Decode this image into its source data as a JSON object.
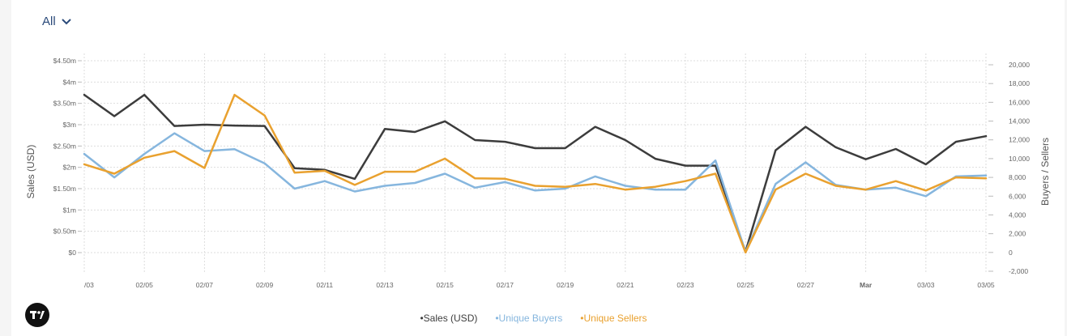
{
  "filter": {
    "label": "All"
  },
  "colors": {
    "sales": "#3c3c3c",
    "buyers": "#86b6de",
    "sellers": "#e9a12f",
    "grid": "#dddddd"
  },
  "chart_data": {
    "type": "line",
    "title": "",
    "ylabel_left": "Sales (USD)",
    "ylabel_right": "Buyers / Sellers",
    "left_axis": {
      "min": 0,
      "max": 4.5,
      "ticks": [
        0,
        0.5,
        1,
        1.5,
        2,
        2.5,
        3,
        3.5,
        4,
        4.5
      ],
      "tick_labels": [
        "$0",
        "$0.50m",
        "$1m",
        "$1.50m",
        "$2m",
        "$2.50m",
        "$3m",
        "$3.50m",
        "$4m",
        "$4.50m"
      ]
    },
    "right_axis": {
      "min": -2000,
      "max": 20000,
      "ticks": [
        -2000,
        0,
        2000,
        4000,
        6000,
        8000,
        10000,
        12000,
        14000,
        16000,
        18000,
        20000
      ],
      "tick_labels": [
        "-2,000",
        "0",
        "2,000",
        "4,000",
        "6,000",
        "8,000",
        "10,000",
        "12,000",
        "14,000",
        "16,000",
        "18,000",
        "20,000"
      ]
    },
    "x_tick_labels": [
      {
        "label": "/03",
        "index": 0,
        "bold": false
      },
      {
        "label": "02/05",
        "index": 2,
        "bold": false
      },
      {
        "label": "02/07",
        "index": 4,
        "bold": false
      },
      {
        "label": "02/09",
        "index": 6,
        "bold": false
      },
      {
        "label": "02/11",
        "index": 8,
        "bold": false
      },
      {
        "label": "02/13",
        "index": 10,
        "bold": false
      },
      {
        "label": "02/15",
        "index": 12,
        "bold": false
      },
      {
        "label": "02/17",
        "index": 14,
        "bold": false
      },
      {
        "label": "02/19",
        "index": 16,
        "bold": false
      },
      {
        "label": "02/21",
        "index": 18,
        "bold": false
      },
      {
        "label": "02/23",
        "index": 20,
        "bold": false
      },
      {
        "label": "02/25",
        "index": 22,
        "bold": false
      },
      {
        "label": "02/27",
        "index": 24,
        "bold": false
      },
      {
        "label": "Mar",
        "index": 26,
        "bold": true
      },
      {
        "label": "03/03",
        "index": 28,
        "bold": false
      },
      {
        "label": "03/05",
        "index": 30,
        "bold": false
      }
    ],
    "series": [
      {
        "name": "Sales (USD)",
        "axis": "left",
        "color": "#3c3c3c",
        "values": [
          3.7,
          3.2,
          3.7,
          2.97,
          3.0,
          2.98,
          2.97,
          1.98,
          1.94,
          1.73,
          2.9,
          2.83,
          3.08,
          2.64,
          2.6,
          2.45,
          2.45,
          2.95,
          2.64,
          2.2,
          2.04,
          2.04,
          0.02,
          2.4,
          2.95,
          2.47,
          2.19,
          2.43,
          2.07,
          2.6,
          2.73
        ]
      },
      {
        "name": "Unique Buyers",
        "axis": "right",
        "color": "#86b6de",
        "values": [
          10500,
          8000,
          10500,
          12700,
          10800,
          11000,
          9500,
          6800,
          7600,
          6500,
          7100,
          7400,
          8400,
          6900,
          7500,
          6600,
          6800,
          8100,
          7100,
          6700,
          6700,
          9800,
          50,
          7300,
          9600,
          7200,
          6700,
          6900,
          6000,
          8100,
          8200
        ]
      },
      {
        "name": "Unique Sellers",
        "axis": "right",
        "color": "#e9a12f",
        "values": [
          9400,
          8400,
          10100,
          10800,
          9000,
          16800,
          14600,
          8500,
          8700,
          7200,
          8600,
          8600,
          10000,
          7900,
          7850,
          7100,
          7000,
          7300,
          6700,
          7000,
          7600,
          8400,
          0,
          6700,
          8400,
          7100,
          6700,
          7600,
          6600,
          8000,
          7900
        ]
      }
    ],
    "legend": [
      {
        "label": "•Sales (USD)",
        "color": "#3c3c3c"
      },
      {
        "label": "•Unique Buyers",
        "color": "#86b6de"
      },
      {
        "label": "•Unique Sellers",
        "color": "#e9a12f"
      }
    ],
    "grid": true,
    "legend_position": "bottom-center"
  }
}
